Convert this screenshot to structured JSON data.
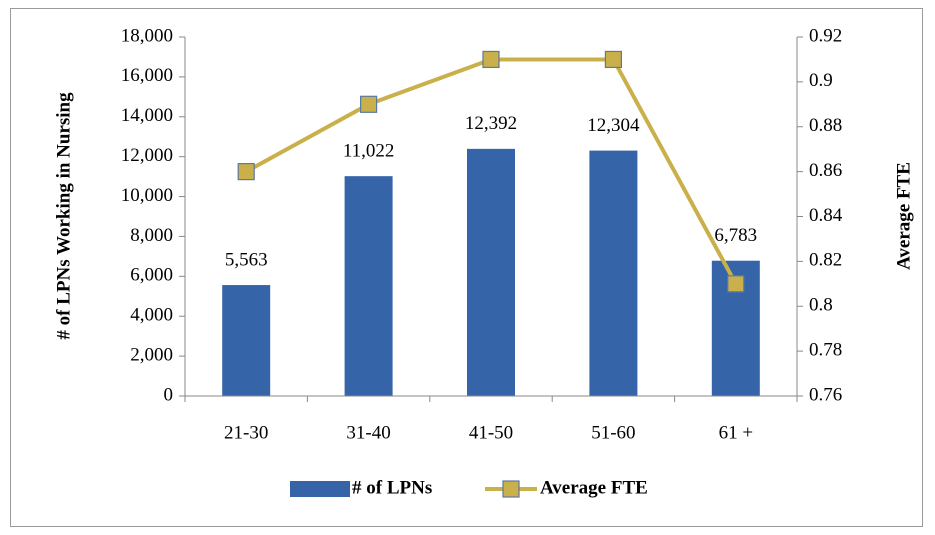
{
  "chart_data": {
    "type": "combo",
    "categories": [
      "21-30",
      "31-40",
      "41-50",
      "51-60",
      "61 +"
    ],
    "series": [
      {
        "name": "# of LPNs",
        "type": "bar",
        "color": "#3565a8",
        "values": [
          5563,
          11022,
          12392,
          12304,
          6783
        ],
        "value_labels": [
          "5,563",
          "11,022",
          "12,392",
          "12,304",
          "6,783"
        ]
      },
      {
        "name": "Average FTE",
        "type": "line",
        "axis": "y2",
        "color": "#c9b04a",
        "values": [
          0.86,
          0.89,
          0.91,
          0.91,
          0.81
        ]
      }
    ],
    "ylabel": "# of LPNs  Working in Nursing",
    "y2label": "Average FTE",
    "ylim": [
      0,
      18000
    ],
    "yticks": [
      0,
      {
        "value": 2000,
        "label": "2,000"
      },
      {
        "value": 4000,
        "label": "4,000"
      },
      {
        "value": 6000,
        "label": "6,000"
      },
      {
        "value": 8000,
        "label": "8,000"
      },
      {
        "value": 10000,
        "label": "10,000"
      },
      {
        "value": 12000,
        "label": "12,000"
      },
      {
        "value": 14000,
        "label": "14,000"
      },
      {
        "value": 16000,
        "label": "16,000"
      },
      {
        "value": 18000,
        "label": "18,000"
      }
    ],
    "y2lim": [
      0.76,
      0.92
    ],
    "y2ticks": [
      0.76,
      0.78,
      0.8,
      0.82,
      0.84,
      0.86,
      0.88,
      0.9,
      0.92
    ],
    "legend": "bottom"
  }
}
